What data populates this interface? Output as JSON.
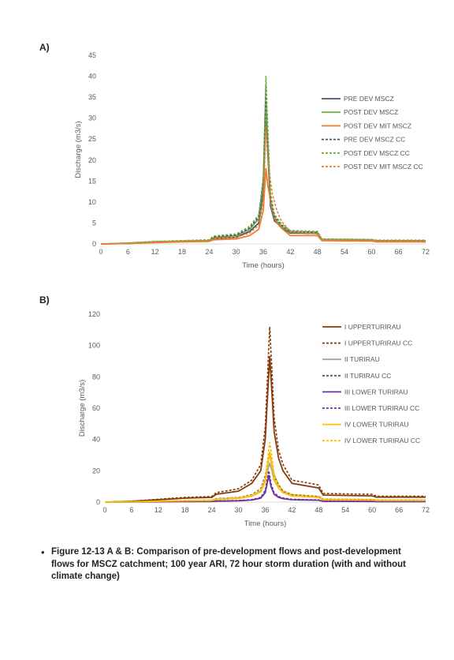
{
  "panels": [
    {
      "label": "A)"
    },
    {
      "label": "B)"
    }
  ],
  "caption": {
    "bullet": "•",
    "text": "Figure 12-13 A & B: Comparison of pre-development flows and post-development flows for MSCZ catchment; 100 year ARI, 72 hour storm duration (with and without climate change)"
  },
  "chart_data": [
    {
      "type": "line",
      "title": "",
      "xlabel": "Time (hours)",
      "ylabel": "Discharge (m3/s)",
      "xlim": [
        0,
        72
      ],
      "ylim": [
        0,
        45
      ],
      "xticks": [
        0,
        6,
        12,
        18,
        24,
        30,
        36,
        42,
        48,
        54,
        60,
        66,
        72
      ],
      "yticks": [
        0,
        5,
        10,
        15,
        20,
        25,
        30,
        35,
        40,
        45
      ],
      "grid": false,
      "legend_position": "right",
      "series": [
        {
          "name": "PRE DEV MSCZ",
          "color": "#44546A",
          "dash": "solid",
          "x": [
            0,
            6,
            12,
            18,
            24,
            25,
            30,
            33,
            35,
            36,
            36.6,
            37,
            37.6,
            38.5,
            40,
            42,
            48,
            49,
            60,
            61,
            72
          ],
          "y": [
            0,
            0.1,
            0.4,
            0.6,
            0.7,
            1.3,
            1.6,
            3.0,
            5.0,
            12,
            32,
            22,
            9,
            5.5,
            4.0,
            2.6,
            2.5,
            0.9,
            0.8,
            0.6,
            0.6
          ]
        },
        {
          "name": "POST DEV MSCZ",
          "color": "#70AD47",
          "dash": "solid",
          "x": [
            0,
            6,
            12,
            18,
            24,
            25,
            30,
            33,
            35,
            36,
            36.6,
            37,
            37.6,
            38.5,
            40,
            42,
            48,
            49,
            60,
            61,
            72
          ],
          "y": [
            0,
            0.2,
            0.5,
            0.7,
            0.8,
            1.5,
            2.0,
            3.5,
            6.0,
            14,
            34,
            24,
            10,
            6.0,
            4.2,
            2.8,
            2.6,
            1.0,
            0.9,
            0.7,
            0.7
          ]
        },
        {
          "name": "POST DEV MIT MSCZ",
          "color": "#ED7D31",
          "dash": "solid",
          "x": [
            0,
            6,
            12,
            18,
            24,
            25,
            30,
            33,
            35,
            36,
            36.6,
            37,
            38,
            39,
            40,
            42,
            48,
            49,
            60,
            61,
            72
          ],
          "y": [
            0,
            0.1,
            0.3,
            0.5,
            0.6,
            1.0,
            1.2,
            2.0,
            3.5,
            8,
            18,
            14,
            8,
            5.0,
            3.8,
            2.0,
            2.0,
            0.8,
            0.7,
            0.5,
            0.5
          ]
        },
        {
          "name": "PRE DEV MSCZ CC",
          "color": "#44546A",
          "dash": "dashed",
          "x": [
            0,
            6,
            12,
            18,
            24,
            25,
            30,
            33,
            35,
            36,
            36.6,
            37,
            37.6,
            38.5,
            40,
            42,
            48,
            49,
            60,
            61,
            72
          ],
          "y": [
            0,
            0.15,
            0.5,
            0.7,
            0.9,
            1.7,
            2.1,
            3.8,
            6.5,
            15,
            38,
            26,
            11,
            6.5,
            4.5,
            3.0,
            2.8,
            1.1,
            1.0,
            0.8,
            0.8
          ]
        },
        {
          "name": "POST DEV MSCZ CC",
          "color": "#70AD47",
          "dash": "dashed",
          "x": [
            0,
            6,
            12,
            18,
            24,
            25,
            30,
            33,
            35,
            36,
            36.6,
            37,
            37.6,
            38.5,
            40,
            42,
            48,
            49,
            60,
            61,
            72
          ],
          "y": [
            0,
            0.25,
            0.6,
            0.8,
            1.0,
            1.9,
            2.4,
            4.2,
            7.0,
            16,
            40,
            28,
            12,
            7.0,
            4.8,
            3.2,
            3.0,
            1.2,
            1.1,
            0.9,
            0.9
          ]
        },
        {
          "name": "POST DEV MIT MSCZ CC",
          "color": "#ED7D31",
          "dash": "dashed",
          "x": [
            0,
            6,
            12,
            18,
            24,
            25,
            30,
            33,
            35,
            36,
            36.6,
            37,
            38,
            39,
            40,
            42,
            48,
            49,
            60,
            61,
            72
          ],
          "y": [
            0,
            0.15,
            0.4,
            0.6,
            0.7,
            1.3,
            1.6,
            2.6,
            4.5,
            10,
            28,
            20,
            12,
            8.0,
            5.5,
            3.0,
            2.4,
            1.0,
            0.9,
            0.7,
            0.7
          ]
        }
      ]
    },
    {
      "type": "line",
      "title": "",
      "xlabel": "Time (hours)",
      "ylabel": "Discharge (m3/s)",
      "xlim": [
        0,
        72
      ],
      "ylim": [
        0,
        120
      ],
      "xticks": [
        0,
        6,
        12,
        18,
        24,
        30,
        36,
        42,
        48,
        54,
        60,
        66,
        72
      ],
      "yticks": [
        0,
        20,
        40,
        60,
        80,
        100,
        120
      ],
      "grid": false,
      "legend_position": "right",
      "series": [
        {
          "name": "I UPPERTURIRAU",
          "color": "#843C0C",
          "dash": "solid",
          "x": [
            0,
            6,
            12,
            18,
            24,
            25,
            30,
            33,
            35,
            36,
            37,
            37.5,
            38,
            39,
            40,
            42,
            48,
            49,
            60,
            61,
            72
          ],
          "y": [
            0,
            0.5,
            1.5,
            2.5,
            3.0,
            5.0,
            7.0,
            12,
            20,
            40,
            93,
            70,
            45,
            28,
            20,
            12,
            9,
            4.5,
            4.0,
            3.2,
            3.2
          ]
        },
        {
          "name": "I UPPERTURIRAU CC",
          "color": "#843C0C",
          "dash": "dashed",
          "x": [
            0,
            6,
            12,
            18,
            24,
            25,
            30,
            33,
            35,
            36,
            37,
            37.5,
            38,
            39,
            40,
            42,
            48,
            49,
            60,
            61,
            72
          ],
          "y": [
            0,
            0.6,
            1.8,
            3.0,
            3.6,
            6.0,
            8.5,
            14,
            24,
            48,
            112,
            84,
            54,
            33,
            24,
            14,
            11,
            5.5,
            5.0,
            3.8,
            3.8
          ]
        },
        {
          "name": "II TURIRAU",
          "color": "#A5A5A5",
          "dash": "solid",
          "x": [
            0,
            6,
            12,
            18,
            24,
            25,
            30,
            33,
            35,
            36,
            37,
            37.5,
            38,
            39,
            40,
            42,
            48,
            49,
            60,
            61,
            72
          ],
          "y": [
            0,
            0.2,
            0.5,
            0.8,
            1.0,
            1.8,
            2.5,
            4.0,
            7.0,
            14,
            25,
            20,
            14,
            9,
            6,
            4,
            3,
            1.5,
            1.3,
            1.0,
            1.0
          ]
        },
        {
          "name": "II TURIRAU CC",
          "color": "#595959",
          "dash": "dashed",
          "x": [
            0,
            6,
            12,
            18,
            24,
            25,
            30,
            33,
            35,
            36,
            37,
            37.5,
            38,
            39,
            40,
            42,
            48,
            49,
            60,
            61,
            72
          ],
          "y": [
            0,
            0.25,
            0.6,
            1.0,
            1.2,
            2.2,
            3.0,
            4.8,
            8.5,
            17,
            30,
            24,
            17,
            11,
            7,
            4.8,
            3.6,
            1.8,
            1.6,
            1.2,
            1.2
          ]
        },
        {
          "name": "III LOWER TURIRAU",
          "color": "#7030A0",
          "dash": "solid",
          "x": [
            0,
            6,
            12,
            18,
            24,
            25,
            30,
            33,
            35,
            36,
            36.8,
            37.3,
            38,
            39,
            40,
            42,
            48,
            49,
            60,
            61,
            72
          ],
          "y": [
            0,
            0.1,
            0.2,
            0.3,
            0.4,
            0.6,
            0.8,
            1.3,
            2.5,
            6.0,
            17,
            10,
            5.0,
            3.0,
            2.2,
            1.5,
            1.2,
            0.5,
            0.4,
            0.3,
            0.3
          ]
        },
        {
          "name": "III LOWER TURIRAU CC",
          "color": "#7030A0",
          "dash": "dashed",
          "x": [
            0,
            6,
            12,
            18,
            24,
            25,
            30,
            33,
            35,
            36,
            36.8,
            37.3,
            38,
            39,
            40,
            42,
            48,
            49,
            60,
            61,
            72
          ],
          "y": [
            0,
            0.12,
            0.25,
            0.4,
            0.5,
            0.8,
            1.0,
            1.6,
            3.0,
            7.5,
            20,
            12,
            6.0,
            3.6,
            2.6,
            1.8,
            1.4,
            0.6,
            0.5,
            0.4,
            0.4
          ]
        },
        {
          "name": "IV LOWER TURIRAU",
          "color": "#FFC000",
          "dash": "solid",
          "x": [
            0,
            6,
            12,
            18,
            24,
            25,
            30,
            33,
            35,
            36,
            37,
            37.5,
            38,
            39,
            40,
            42,
            48,
            49,
            60,
            61,
            72
          ],
          "y": [
            0,
            0.2,
            0.5,
            0.8,
            1.0,
            1.7,
            2.3,
            3.8,
            6.5,
            13,
            32,
            24,
            15,
            9,
            6,
            4,
            3,
            1.5,
            1.3,
            1.0,
            1.0
          ]
        },
        {
          "name": "IV LOWER TURIRAU CC",
          "color": "#FFC000",
          "dash": "dashed",
          "x": [
            0,
            6,
            12,
            18,
            24,
            25,
            30,
            33,
            35,
            36,
            37,
            37.5,
            38,
            39,
            40,
            42,
            48,
            49,
            60,
            61,
            72
          ],
          "y": [
            0,
            0.25,
            0.6,
            1.0,
            1.2,
            2.0,
            2.8,
            4.5,
            7.8,
            16,
            38,
            29,
            18,
            11,
            7.2,
            4.8,
            3.6,
            1.8,
            1.6,
            1.2,
            1.2
          ]
        }
      ]
    }
  ]
}
